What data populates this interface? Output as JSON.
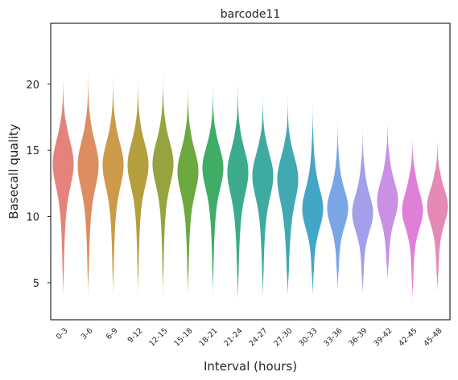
{
  "chart_data": {
    "type": "violin",
    "title": "barcode11",
    "xlabel": "Interval (hours)",
    "ylabel": "Basecall quality",
    "ylim": [
      2.2,
      24.6
    ],
    "yticks": [
      5,
      10,
      15,
      20
    ],
    "grid": false,
    "categories": [
      "0-3",
      "3-6",
      "6-9",
      "9-12",
      "12-15",
      "15-18",
      "18-21",
      "21-24",
      "24-27",
      "27-30",
      "30-33",
      "33-36",
      "36-39",
      "39-42",
      "42-45",
      "45-48"
    ],
    "colors": [
      "#e5837b",
      "#dd8d5f",
      "#cc9a48",
      "#b59e3d",
      "#96a33f",
      "#6ca93f",
      "#40ad66",
      "#3bab8c",
      "#3eaaa0",
      "#41a9b1",
      "#44a6c7",
      "#7aa6e6",
      "#a39fea",
      "#c990e4",
      "#e07fd8",
      "#e48ab5"
    ],
    "violins": [
      {
        "min": 3.8,
        "max": 20.8,
        "peak": 14.1,
        "mean": 13.4,
        "sd": 2.8
      },
      {
        "min": 4.0,
        "max": 21.2,
        "peak": 14.0,
        "mean": 13.3,
        "sd": 2.8
      },
      {
        "min": 4.0,
        "max": 21.0,
        "peak": 14.0,
        "mean": 13.3,
        "sd": 2.7
      },
      {
        "min": 4.0,
        "max": 20.8,
        "peak": 14.0,
        "mean": 13.4,
        "sd": 2.6
      },
      {
        "min": 3.8,
        "max": 21.2,
        "peak": 14.1,
        "mean": 13.5,
        "sd": 2.6
      },
      {
        "min": 4.0,
        "max": 20.2,
        "peak": 13.5,
        "mean": 12.9,
        "sd": 2.6
      },
      {
        "min": 4.0,
        "max": 20.2,
        "peak": 13.8,
        "mean": 13.0,
        "sd": 2.5
      },
      {
        "min": 3.6,
        "max": 20.5,
        "peak": 13.5,
        "mean": 12.6,
        "sd": 2.7
      },
      {
        "min": 3.9,
        "max": 19.2,
        "peak": 13.2,
        "mean": 12.4,
        "sd": 2.6
      },
      {
        "min": 4.0,
        "max": 19.2,
        "peak": 13.0,
        "mean": 11.8,
        "sd": 2.7
      },
      {
        "min": 4.0,
        "max": 19.6,
        "peak": 10.5,
        "mean": 11.0,
        "sd": 2.4
      },
      {
        "min": 4.4,
        "max": 17.9,
        "peak": 10.6,
        "mean": 10.8,
        "sd": 2.2
      },
      {
        "min": 4.1,
        "max": 16.8,
        "peak": 10.2,
        "mean": 10.6,
        "sd": 2.2
      },
      {
        "min": 5.2,
        "max": 17.3,
        "peak": 11.2,
        "mean": 11.3,
        "sd": 2.3
      },
      {
        "min": 3.7,
        "max": 15.9,
        "peak": 10.4,
        "mean": 10.8,
        "sd": 2.2
      },
      {
        "min": 4.3,
        "max": 15.9,
        "peak": 10.8,
        "mean": 10.7,
        "sd": 2.1
      }
    ]
  }
}
